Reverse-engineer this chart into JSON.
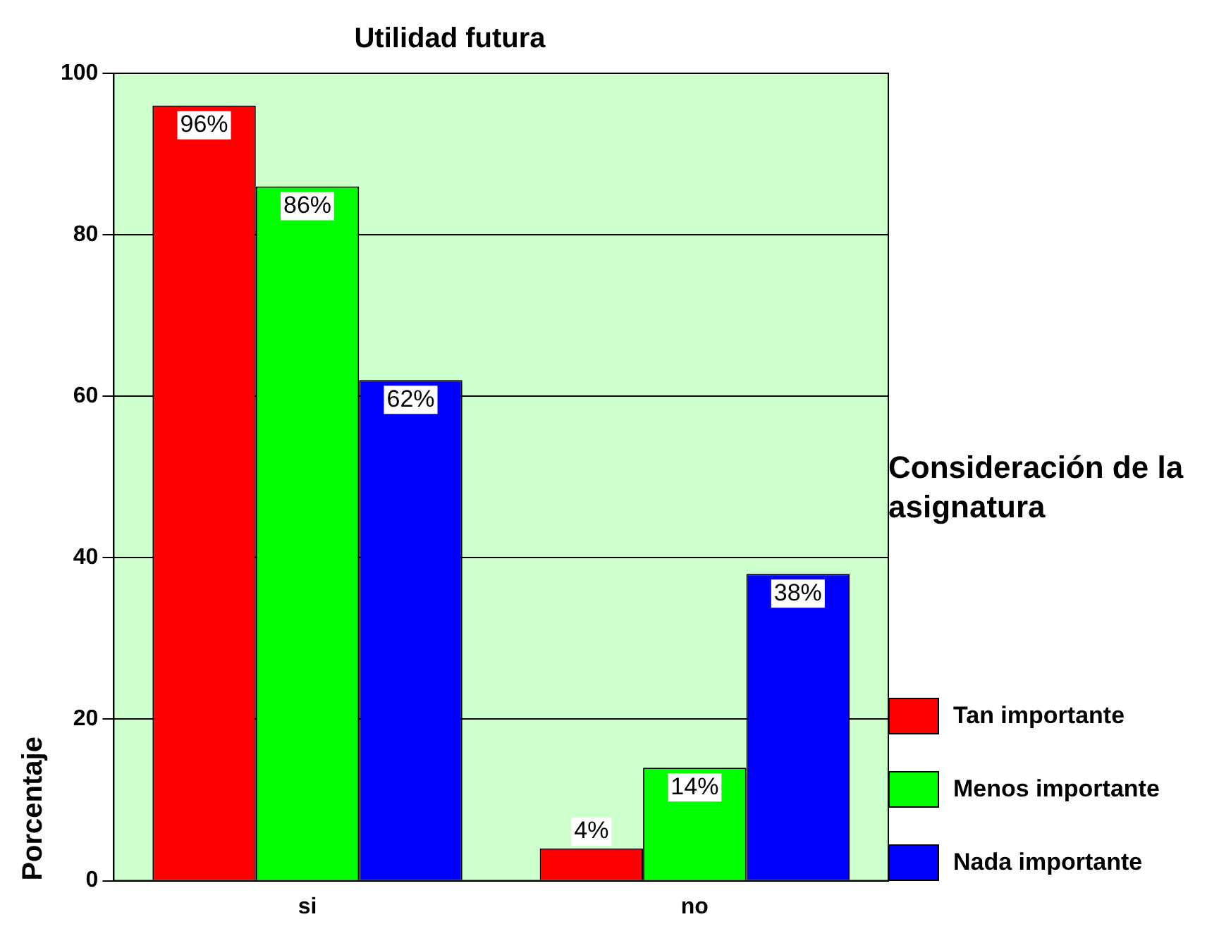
{
  "chart_data": {
    "type": "bar",
    "title": "Utilidad futura",
    "ylabel": "Porcentaje",
    "legend_title": "Consideración de la asignatura",
    "categories": [
      "si",
      "no"
    ],
    "series": [
      {
        "name": "Tan importante",
        "color": "#ff0000",
        "values": [
          96,
          4
        ],
        "value_labels": [
          "96%",
          "4%"
        ]
      },
      {
        "name": "Menos importante",
        "color": "#00ff00",
        "values": [
          86,
          14
        ],
        "value_labels": [
          "86%",
          "14%"
        ]
      },
      {
        "name": "Nada importante",
        "color": "#0000ff",
        "values": [
          62,
          38
        ],
        "value_labels": [
          "62%",
          "38%"
        ]
      }
    ],
    "ylim": [
      0,
      100
    ],
    "yticks": [
      0,
      20,
      40,
      60,
      80,
      100
    ],
    "grid": "y",
    "legend": "right"
  }
}
